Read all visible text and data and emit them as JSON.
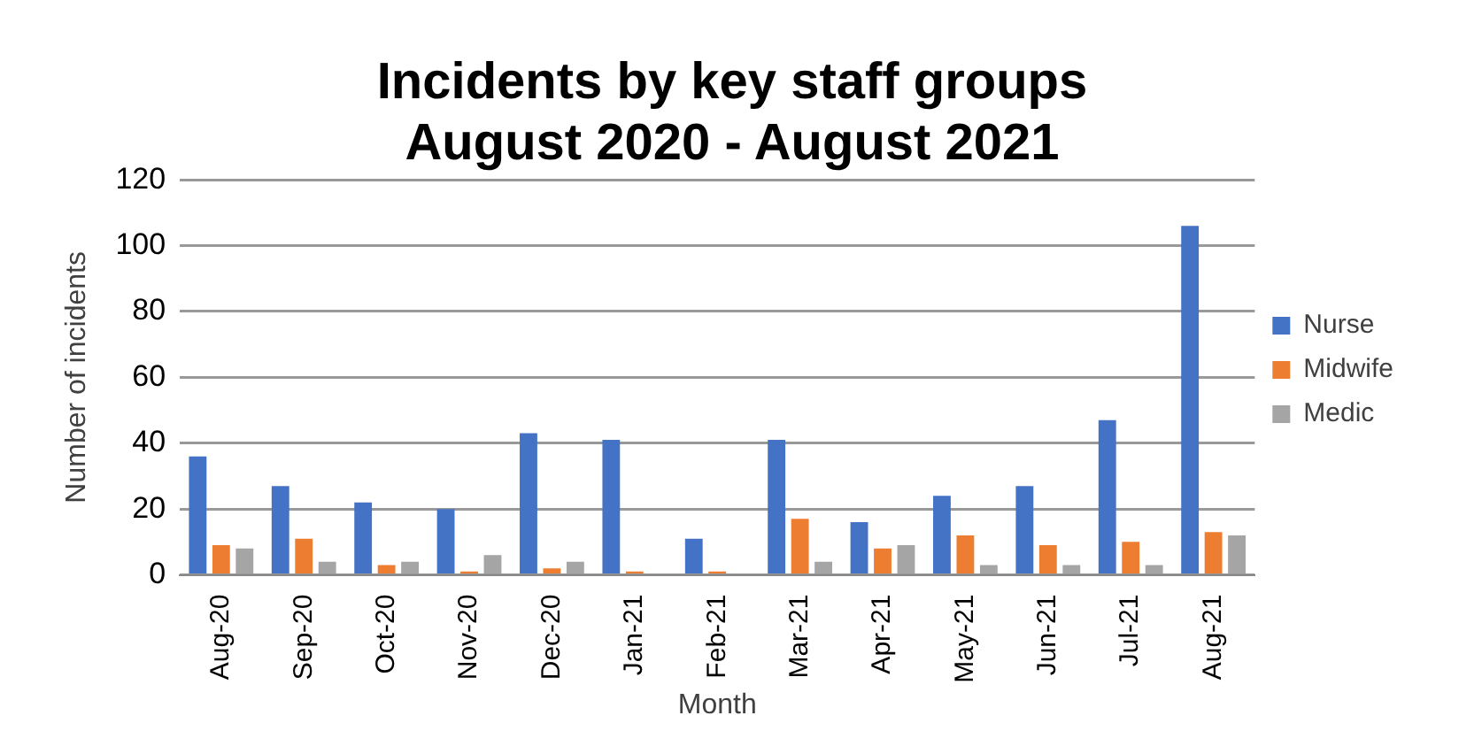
{
  "chart_data": {
    "type": "bar",
    "title": [
      "Incidents by key staff groups",
      "August 2020 - August 2021"
    ],
    "xlabel": "Month",
    "ylabel": "Number of incidents",
    "categories": [
      "Aug-20",
      "Sep-20",
      "Oct-20",
      "Nov-20",
      "Dec-20",
      "Jan-21",
      "Feb-21",
      "Mar-21",
      "Apr-21",
      "May-21",
      "Jun-21",
      "Jul-21",
      "Aug-21"
    ],
    "series": [
      {
        "name": "Nurse",
        "color": "#4472c4",
        "values": [
          36,
          27,
          22,
          20,
          43,
          41,
          11,
          41,
          16,
          24,
          27,
          47,
          106
        ]
      },
      {
        "name": "Midwife",
        "color": "#ed7d31",
        "values": [
          9,
          11,
          3,
          1,
          2,
          1,
          1,
          17,
          8,
          12,
          9,
          10,
          13
        ]
      },
      {
        "name": "Medic",
        "color": "#a5a5a5",
        "values": [
          8,
          4,
          4,
          6,
          4,
          0,
          0,
          4,
          9,
          3,
          3,
          3,
          12
        ]
      }
    ],
    "ylim": [
      0,
      120
    ],
    "yticks": [
      0,
      20,
      40,
      60,
      80,
      100,
      120
    ],
    "grid": "y",
    "legend": "right"
  }
}
